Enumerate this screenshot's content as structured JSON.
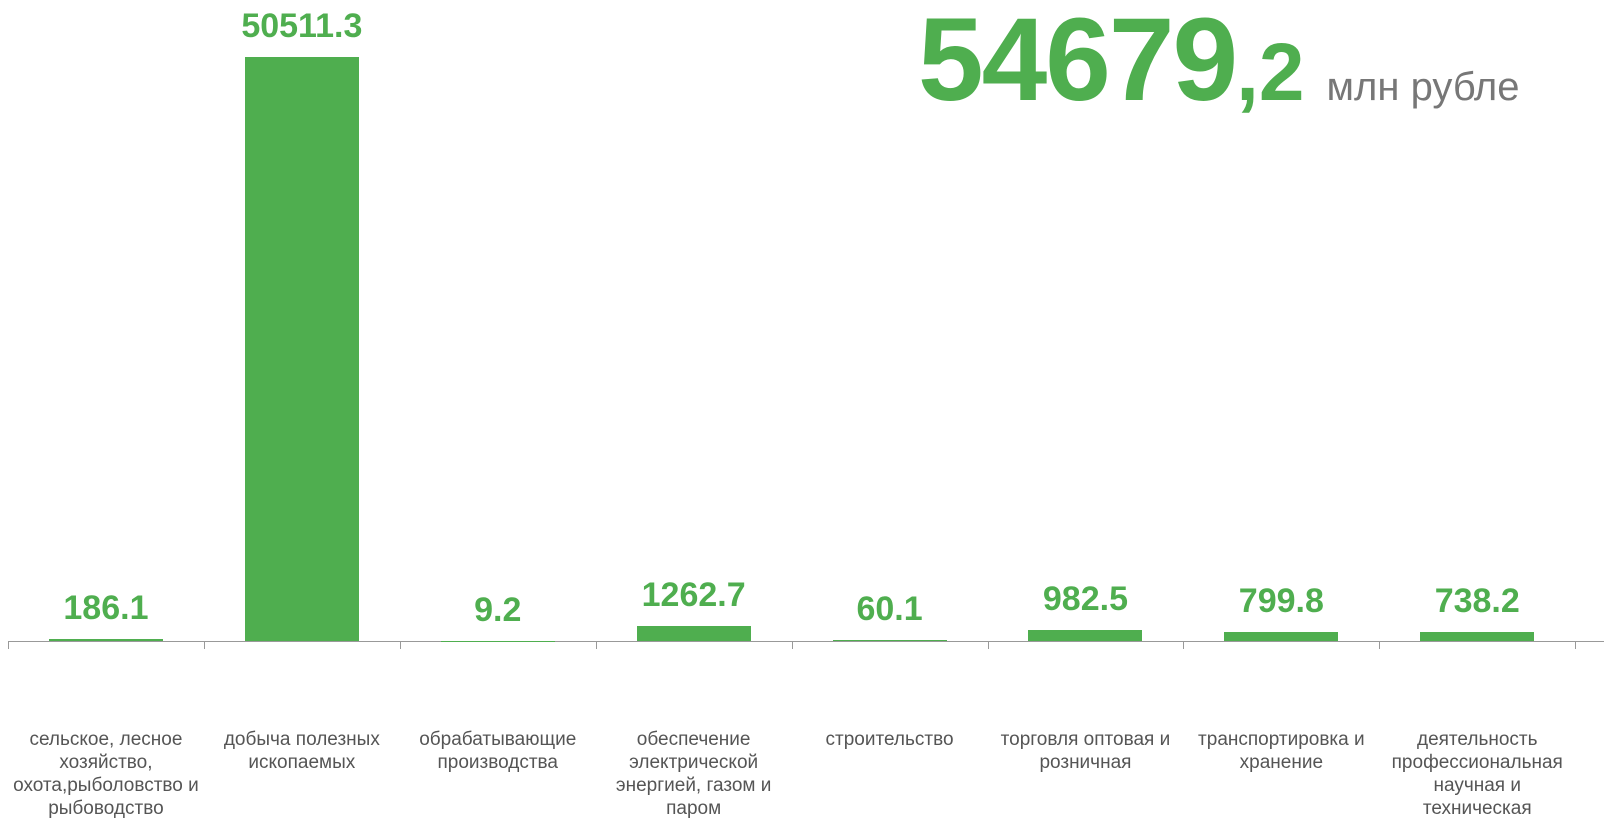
{
  "chart_data": {
    "type": "bar",
    "total_integer": "54679",
    "total_fraction": ",2",
    "unit": "млн рубле",
    "categories": [
      "сельское, лесное хозяйство, охота,рыболовство и рыбоводство",
      "добыча полезных ископаемых",
      "обрабатывающие производства",
      "обеспечение электрической энергией, газом и паром",
      "строительство",
      "торговля оптовая и розничная",
      "транспортировка и хранение",
      "деятельность профессиональная научная и техническая"
    ],
    "values": [
      186.1,
      50511.3,
      9.2,
      1262.7,
      60.1,
      982.5,
      799.8,
      738.2
    ],
    "color": "#4fae4f"
  }
}
